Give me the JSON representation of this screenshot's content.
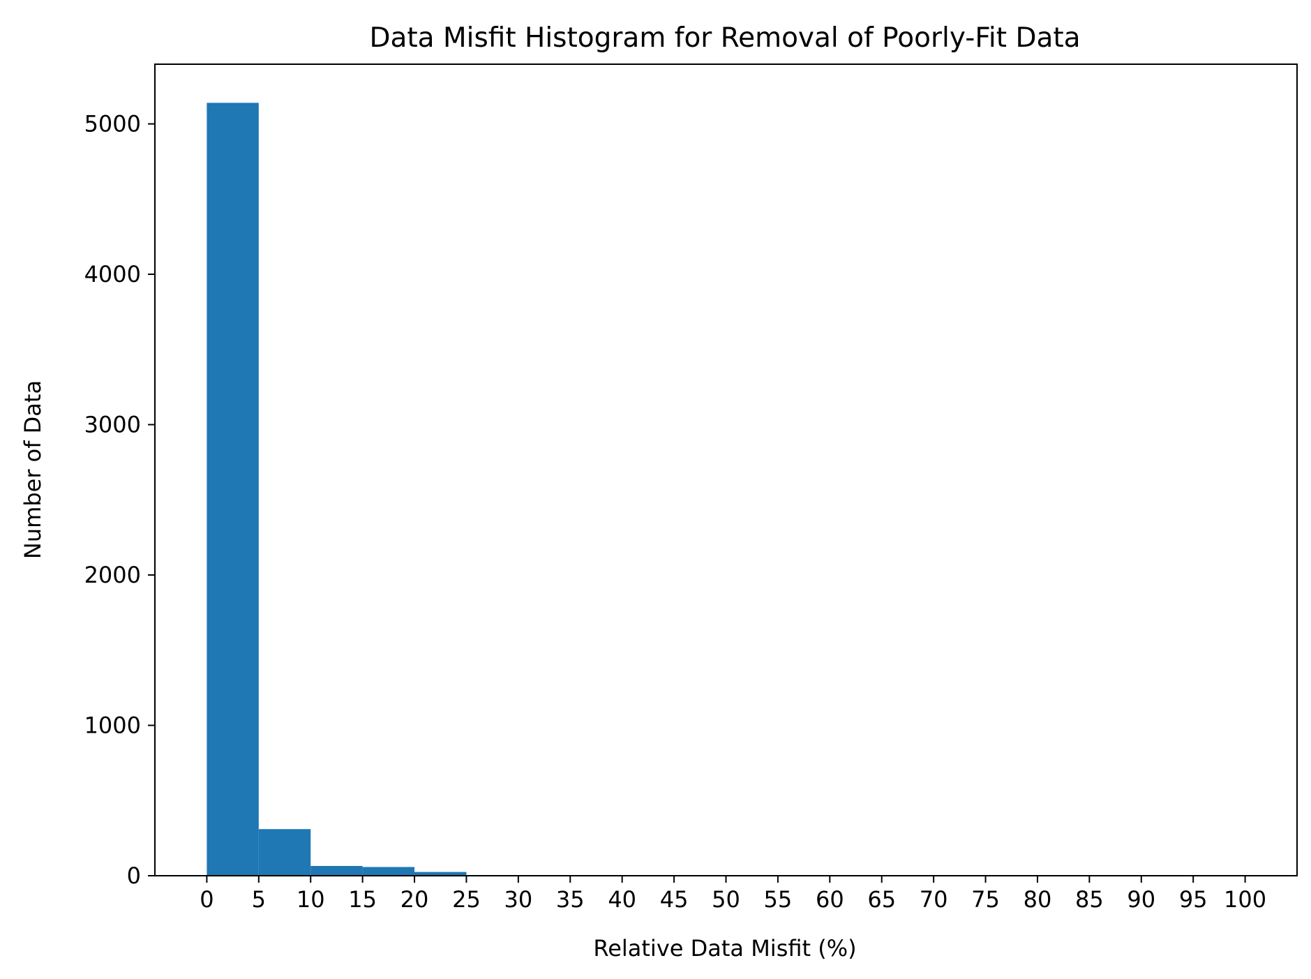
{
  "chart_data": {
    "type": "bar",
    "title": "Data Misfit Histogram for Removal of Poorly-Fit Data",
    "xlabel": "Relative Data Misfit (%)",
    "ylabel": "Number of Data",
    "bins": [
      {
        "x0": 0,
        "x1": 5,
        "value": 5140
      },
      {
        "x0": 5,
        "x1": 10,
        "value": 310
      },
      {
        "x0": 10,
        "x1": 15,
        "value": 65
      },
      {
        "x0": 15,
        "x1": 20,
        "value": 58
      },
      {
        "x0": 20,
        "x1": 25,
        "value": 25
      },
      {
        "x0": 25,
        "x1": 30,
        "value": 2
      },
      {
        "x0": 30,
        "x1": 35,
        "value": 1
      },
      {
        "x0": 35,
        "x1": 40,
        "value": 0
      },
      {
        "x0": 40,
        "x1": 45,
        "value": 0
      },
      {
        "x0": 45,
        "x1": 50,
        "value": 0
      },
      {
        "x0": 50,
        "x1": 55,
        "value": 0
      },
      {
        "x0": 55,
        "x1": 60,
        "value": 0
      },
      {
        "x0": 60,
        "x1": 65,
        "value": 0
      },
      {
        "x0": 65,
        "x1": 70,
        "value": 0
      },
      {
        "x0": 70,
        "x1": 75,
        "value": 0
      },
      {
        "x0": 75,
        "x1": 80,
        "value": 0
      },
      {
        "x0": 80,
        "x1": 85,
        "value": 0
      },
      {
        "x0": 85,
        "x1": 90,
        "value": 0
      },
      {
        "x0": 90,
        "x1": 95,
        "value": 0
      },
      {
        "x0": 95,
        "x1": 100,
        "value": 0
      }
    ],
    "xticks": [
      0,
      5,
      10,
      15,
      20,
      25,
      30,
      35,
      40,
      45,
      50,
      55,
      60,
      65,
      70,
      75,
      80,
      85,
      90,
      95,
      100
    ],
    "yticks": [
      0,
      1000,
      2000,
      3000,
      4000,
      5000
    ],
    "xlim": [
      -5,
      105
    ],
    "ylim": [
      0,
      5397
    ],
    "grid": false,
    "bar_color": "#1f77b4"
  }
}
